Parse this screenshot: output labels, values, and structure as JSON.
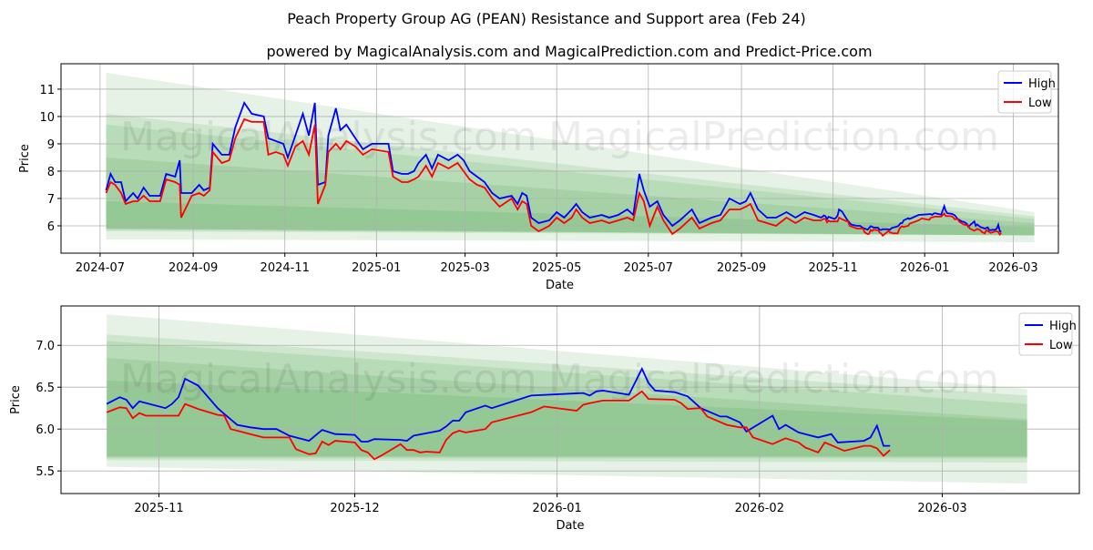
{
  "title": "Peach Property Group AG (PEAN) Resistance and Support area (Feb 24)",
  "subtitle": "powered by MagicalAnalysis.com and MagicalPrediction.com and Predict-Price.com",
  "watermarks": [
    "MagicalAnalysis.com",
    "MagicalPrediction.com"
  ],
  "colors": {
    "high": "#0000ff",
    "low": "#ff0000",
    "band": "#008000"
  },
  "chart_data": [
    {
      "type": "line",
      "name": "full-history",
      "xlabel": "Date",
      "ylabel": "Price",
      "xlim": [
        "2024-06-05",
        "2026-03-31"
      ],
      "ylim": [
        5.0,
        11.93
      ],
      "yticks": [
        6,
        7,
        8,
        9,
        10,
        11
      ],
      "xticks": [
        "2024-07",
        "2024-09",
        "2024-11",
        "2025-01",
        "2025-03",
        "2025-05",
        "2025-07",
        "2025-09",
        "2025-11",
        "2026-01",
        "2026-03"
      ],
      "grid": true,
      "legend": {
        "position": "top-right",
        "entries": [
          "High",
          "Low"
        ]
      },
      "includes_recent_series_of_chart": 1,
      "bands": {
        "start": "2024-07-05",
        "end": "2026-03-15",
        "levels": [
          {
            "upper": [
              11.6,
              6.5
            ],
            "lower": [
              5.5,
              5.4
            ]
          },
          {
            "upper": [
              10.1,
              6.35
            ],
            "lower": [
              5.8,
              5.65
            ]
          },
          {
            "upper": [
              9.7,
              6.25
            ],
            "lower": [
              5.85,
              5.65
            ]
          },
          {
            "upper": [
              8.5,
              6.1
            ],
            "lower": [
              5.9,
              5.65
            ]
          },
          {
            "upper": [
              6.9,
              5.95
            ],
            "lower": [
              5.9,
              5.65
            ]
          }
        ]
      },
      "x": [
        "2024-07-05",
        "2024-07-08",
        "2024-07-11",
        "2024-07-15",
        "2024-07-18",
        "2024-07-23",
        "2024-07-26",
        "2024-07-30",
        "2024-08-03",
        "2024-08-10",
        "2024-08-14",
        "2024-08-20",
        "2024-08-23",
        "2024-08-24",
        "2024-08-31",
        "2024-09-05",
        "2024-09-08",
        "2024-09-12",
        "2024-09-14",
        "2024-09-20",
        "2024-09-25",
        "2024-09-29",
        "2024-10-05",
        "2024-10-10",
        "2024-10-18",
        "2024-10-21",
        "2024-10-26",
        "2024-10-31",
        "2024-11-03",
        "2024-11-08",
        "2024-11-13",
        "2024-11-17",
        "2024-11-21",
        "2024-11-23",
        "2024-11-28",
        "2024-11-30",
        "2024-12-05",
        "2024-12-08",
        "2024-12-12",
        "2024-12-18",
        "2024-12-23",
        "2024-12-29",
        "2025-01-09",
        "2025-01-12",
        "2025-01-18",
        "2025-01-22",
        "2025-01-26",
        "2025-01-29",
        "2025-02-03",
        "2025-02-07",
        "2025-02-11",
        "2025-02-18",
        "2025-02-24",
        "2025-02-28",
        "2025-03-04",
        "2025-03-09",
        "2025-03-14",
        "2025-03-19",
        "2025-03-24",
        "2025-04-01",
        "2025-04-05",
        "2025-04-08",
        "2025-04-11",
        "2025-04-14",
        "2025-04-19",
        "2025-04-26",
        "2025-05-01",
        "2025-05-06",
        "2025-05-11",
        "2025-05-14",
        "2025-05-18",
        "2025-05-23",
        "2025-05-31",
        "2025-06-05",
        "2025-06-11",
        "2025-06-17",
        "2025-06-21",
        "2025-06-25",
        "2025-06-28",
        "2025-07-02",
        "2025-07-07",
        "2025-07-11",
        "2025-07-17",
        "2025-07-22",
        "2025-07-30",
        "2025-08-04",
        "2025-08-12",
        "2025-08-18",
        "2025-08-24",
        "2025-08-31",
        "2025-09-04",
        "2025-09-07",
        "2025-09-12",
        "2025-09-18",
        "2025-09-24",
        "2025-10-01",
        "2025-10-07",
        "2025-10-13",
        "2025-10-19"
      ],
      "series": [
        {
          "name": "High",
          "values": [
            7.3,
            7.9,
            7.6,
            7.6,
            6.9,
            7.2,
            7.0,
            7.4,
            7.1,
            7.1,
            7.9,
            7.8,
            8.4,
            7.2,
            7.2,
            7.5,
            7.3,
            7.4,
            9.0,
            8.6,
            8.6,
            9.6,
            10.5,
            10.1,
            10.0,
            9.2,
            9.1,
            9.0,
            8.5,
            9.3,
            10.1,
            9.3,
            10.5,
            7.5,
            7.6,
            9.3,
            10.3,
            9.5,
            9.7,
            9.2,
            8.8,
            9.0,
            9.0,
            8.0,
            7.9,
            7.9,
            8.0,
            8.3,
            8.6,
            8.1,
            8.6,
            8.4,
            8.6,
            8.4,
            8.0,
            7.8,
            7.6,
            7.2,
            7.0,
            7.1,
            6.8,
            7.2,
            7.1,
            6.3,
            6.1,
            6.2,
            6.5,
            6.3,
            6.6,
            6.8,
            6.5,
            6.3,
            6.4,
            6.3,
            6.4,
            6.6,
            6.4,
            7.9,
            7.3,
            6.7,
            6.9,
            6.4,
            6.0,
            6.2,
            6.6,
            6.1,
            6.3,
            6.4,
            7.0,
            6.8,
            6.9,
            7.2,
            6.6,
            6.3,
            6.3,
            6.5,
            6.3,
            6.5,
            6.4
          ]
        },
        {
          "name": "Low",
          "values": [
            7.2,
            7.6,
            7.5,
            7.2,
            6.8,
            6.9,
            6.9,
            7.1,
            6.9,
            6.9,
            7.7,
            7.6,
            7.5,
            6.3,
            7.1,
            7.2,
            7.1,
            7.3,
            8.7,
            8.3,
            8.4,
            9.2,
            9.9,
            9.8,
            9.8,
            8.6,
            8.7,
            8.6,
            8.2,
            8.9,
            9.1,
            8.6,
            9.7,
            6.8,
            7.5,
            8.7,
            9.0,
            8.8,
            9.1,
            8.9,
            8.6,
            8.8,
            8.7,
            7.8,
            7.6,
            7.6,
            7.7,
            7.8,
            8.2,
            7.8,
            8.3,
            8.1,
            8.3,
            8.0,
            7.7,
            7.5,
            7.4,
            7.0,
            6.7,
            7.0,
            6.6,
            6.9,
            6.8,
            6.0,
            5.8,
            6.0,
            6.3,
            6.1,
            6.3,
            6.6,
            6.3,
            6.1,
            6.2,
            6.1,
            6.2,
            6.3,
            6.2,
            7.2,
            6.9,
            6.0,
            6.7,
            6.2,
            5.7,
            5.9,
            6.3,
            5.9,
            6.1,
            6.2,
            6.6,
            6.6,
            6.7,
            6.8,
            6.2,
            6.1,
            6.0,
            6.3,
            6.1,
            6.3,
            6.2
          ]
        }
      ]
    },
    {
      "type": "line",
      "name": "recent-zoom",
      "xlabel": "Date",
      "ylabel": "Price",
      "xlim": [
        "2025-10-17",
        "2026-03-22"
      ],
      "ylim": [
        5.23,
        7.47
      ],
      "yticks": [
        5.5,
        6.0,
        6.5,
        7.0
      ],
      "ytick_labels": [
        "5.5",
        "6.0",
        "6.5",
        "7.0"
      ],
      "xticks": [
        "2025-11",
        "2025-12",
        "2026-01",
        "2026-02",
        "2026-03"
      ],
      "grid": true,
      "legend": {
        "position": "top-right",
        "entries": [
          "High",
          "Low"
        ]
      },
      "bands": {
        "start": "2025-10-24",
        "end": "2026-03-14",
        "levels": [
          {
            "upper": [
              7.37,
              6.48
            ],
            "lower": [
              5.55,
              5.35
            ]
          },
          {
            "upper": [
              7.13,
              6.4
            ],
            "lower": [
              5.63,
              5.6
            ]
          },
          {
            "upper": [
              7.05,
              6.3
            ],
            "lower": [
              5.65,
              5.65
            ]
          },
          {
            "upper": [
              6.85,
              6.12
            ],
            "lower": [
              5.67,
              5.67
            ]
          },
          {
            "upper": [
              6.58,
              6.1
            ],
            "lower": [
              5.67,
              5.67
            ]
          }
        ]
      },
      "high": {
        "x": [
          "2025-10-24",
          "2025-10-26",
          "2025-10-27",
          "2025-10-28",
          "2025-10-29",
          "2025-11-02",
          "2025-11-03",
          "2025-11-04",
          "2025-11-05",
          "2025-11-07",
          "2025-11-10",
          "2025-11-11",
          "2025-11-13",
          "2025-11-15",
          "2025-11-17",
          "2025-11-19",
          "2025-11-21",
          "2025-11-24",
          "2025-11-26",
          "2025-11-28",
          "2025-12-01",
          "2025-12-02",
          "2025-12-03",
          "2025-12-04",
          "2025-12-08",
          "2025-12-09",
          "2025-12-10",
          "2025-12-12",
          "2025-12-14",
          "2025-12-15",
          "2025-12-16",
          "2025-12-17",
          "2025-12-18",
          "2025-12-21",
          "2025-12-22",
          "2025-12-28",
          "2026-01-05",
          "2026-01-06",
          "2026-01-07",
          "2026-01-08",
          "2026-01-12",
          "2026-01-14",
          "2026-01-15",
          "2026-01-16",
          "2026-01-19",
          "2026-01-21",
          "2026-01-23",
          "2026-01-26",
          "2026-01-27",
          "2026-01-29",
          "2026-01-30",
          "2026-02-03",
          "2026-02-04",
          "2026-02-05",
          "2026-02-07",
          "2026-02-10",
          "2026-02-12",
          "2026-02-13",
          "2026-02-17",
          "2026-02-18",
          "2026-02-19",
          "2026-02-20",
          "2026-02-21"
        ],
        "values": [
          6.3,
          6.38,
          6.35,
          6.25,
          6.33,
          6.25,
          6.3,
          6.38,
          6.6,
          6.52,
          6.25,
          6.18,
          6.05,
          6.02,
          6.0,
          6.0,
          5.92,
          5.86,
          5.99,
          5.94,
          5.93,
          5.85,
          5.85,
          5.88,
          5.87,
          5.86,
          5.92,
          5.95,
          5.98,
          6.03,
          6.1,
          6.1,
          6.2,
          6.28,
          6.25,
          6.4,
          6.43,
          6.4,
          6.45,
          6.46,
          6.41,
          6.72,
          6.55,
          6.46,
          6.44,
          6.39,
          6.25,
          6.15,
          6.15,
          6.08,
          5.97,
          6.16,
          6.0,
          6.05,
          5.96,
          5.9,
          5.94,
          5.84,
          5.86,
          5.9,
          6.04,
          5.8,
          5.8
        ]
      },
      "low": {
        "x": [
          "2025-10-24",
          "2025-10-26",
          "2025-10-27",
          "2025-10-28",
          "2025-10-29",
          "2025-10-30",
          "2025-11-02",
          "2025-11-04",
          "2025-11-05",
          "2025-11-07",
          "2025-11-10",
          "2025-11-11",
          "2025-11-12",
          "2025-11-13",
          "2025-11-15",
          "2025-11-17",
          "2025-11-21",
          "2025-11-22",
          "2025-11-24",
          "2025-11-25",
          "2025-11-26",
          "2025-11-27",
          "2025-11-28",
          "2025-12-01",
          "2025-12-02",
          "2025-12-03",
          "2025-12-04",
          "2025-12-05",
          "2025-12-08",
          "2025-12-09",
          "2025-12-10",
          "2025-12-11",
          "2025-12-12",
          "2025-12-14",
          "2025-12-15",
          "2025-12-16",
          "2025-12-17",
          "2025-12-18",
          "2025-12-21",
          "2025-12-22",
          "2025-12-28",
          "2025-12-30",
          "2026-01-04",
          "2026-01-05",
          "2026-01-06",
          "2026-01-08",
          "2026-01-12",
          "2026-01-14",
          "2026-01-15",
          "2026-01-19",
          "2026-01-20",
          "2026-01-21",
          "2026-01-23",
          "2026-01-24",
          "2026-01-27",
          "2026-01-29",
          "2026-01-30",
          "2026-01-31",
          "2026-02-03",
          "2026-02-05",
          "2026-02-07",
          "2026-02-08",
          "2026-02-10",
          "2026-02-11",
          "2026-02-14",
          "2026-02-17",
          "2026-02-18",
          "2026-02-19",
          "2026-02-20",
          "2026-02-21"
        ],
        "values": [
          6.2,
          6.26,
          6.25,
          6.13,
          6.19,
          6.16,
          6.16,
          6.16,
          6.3,
          6.24,
          6.17,
          6.16,
          6.0,
          5.98,
          5.94,
          5.9,
          5.9,
          5.76,
          5.7,
          5.71,
          5.85,
          5.81,
          5.86,
          5.84,
          5.75,
          5.72,
          5.64,
          5.68,
          5.82,
          5.75,
          5.75,
          5.72,
          5.73,
          5.72,
          5.87,
          5.95,
          5.98,
          5.96,
          6.0,
          6.08,
          6.2,
          6.27,
          6.22,
          6.29,
          6.31,
          6.34,
          6.34,
          6.45,
          6.36,
          6.35,
          6.31,
          6.24,
          6.25,
          6.15,
          6.05,
          6.02,
          6.02,
          5.9,
          5.82,
          5.89,
          5.84,
          5.78,
          5.72,
          5.84,
          5.74,
          5.8,
          5.8,
          5.77,
          5.68,
          5.75
        ]
      }
    }
  ]
}
